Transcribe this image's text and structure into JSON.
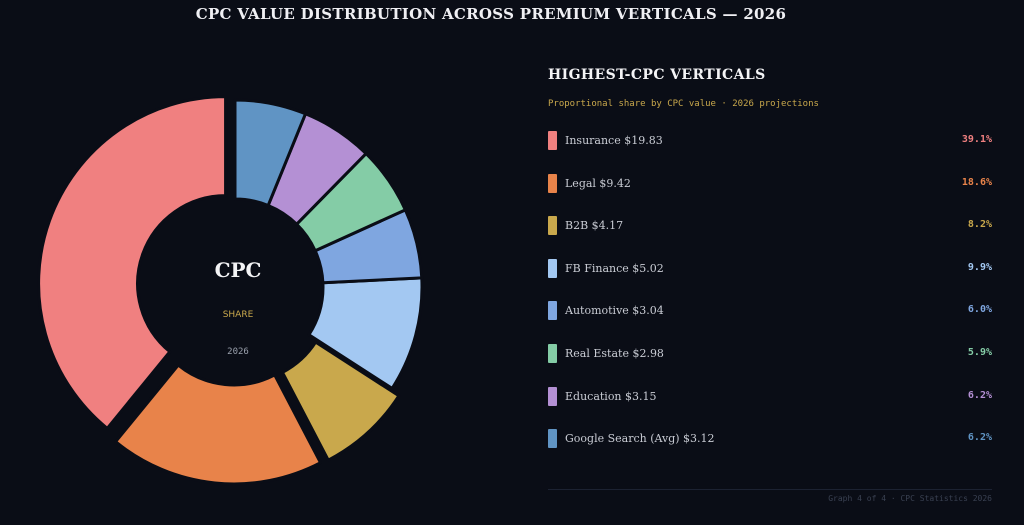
{
  "chart_data": {
    "type": "pie",
    "variant": "donut",
    "title": "CPC VALUE DISTRIBUTION ACROSS PREMIUM VERTICALS — 2026",
    "center": {
      "title": "CPC",
      "subtitle": "SHARE",
      "year": "2026"
    },
    "panel_title": "HIGHEST-CPC VERTICALS",
    "panel_subtitle": "Proportional share by CPC value · 2026 projections",
    "slices": [
      {
        "name": "Insurance",
        "value": 19.83,
        "label": "Insurance $19.83",
        "share": 39.1,
        "share_label": "39.1%",
        "color": "#f08080",
        "legend_color": "#f08080",
        "explode": 1
      },
      {
        "name": "Legal",
        "value": 9.42,
        "label": "Legal $9.42",
        "share": 18.6,
        "share_label": "18.6%",
        "color": "#e8834a",
        "legend_color": "#e8834a",
        "explode": 1
      },
      {
        "name": "B2B",
        "value": 4.17,
        "label": "B2B $4.17",
        "share": 8.2,
        "share_label": "8.2%",
        "color": "#c9a84c",
        "legend_color": "#c9a84c",
        "explode": 1
      },
      {
        "name": "FB Finance",
        "value": 5.02,
        "label": "FB Finance $5.02",
        "share": 9.9,
        "share_label": "9.9%",
        "color": "#a3c8f2",
        "legend_color": "#a3c8f2",
        "explode": 0
      },
      {
        "name": "Automotive",
        "value": 3.04,
        "label": "Automotive $3.04",
        "share": 6.0,
        "share_label": "6.0%",
        "color": "#7fa6e0",
        "legend_color": "#7fa6e0",
        "explode": 0
      },
      {
        "name": "Real Estate",
        "value": 2.98,
        "label": "Real Estate $2.98",
        "share": 5.9,
        "share_label": "5.9%",
        "color": "#84cca6",
        "legend_color": "#84cca6",
        "explode": 0
      },
      {
        "name": "Education",
        "value": 3.15,
        "label": "Education $3.15",
        "share": 6.2,
        "share_label": "6.2%",
        "color": "#b490d4",
        "legend_color": "#b490d4",
        "explode": 0
      },
      {
        "name": "Google Search (Avg)",
        "value": 3.12,
        "label": "Google Search (Avg) $3.12",
        "share": 6.2,
        "share_label": "6.2%",
        "color": "#6094c4",
        "legend_color": "#6094c4",
        "explode": 0
      }
    ],
    "footer": "Graph 4 of 4  ·  CPC Statistics 2026"
  }
}
